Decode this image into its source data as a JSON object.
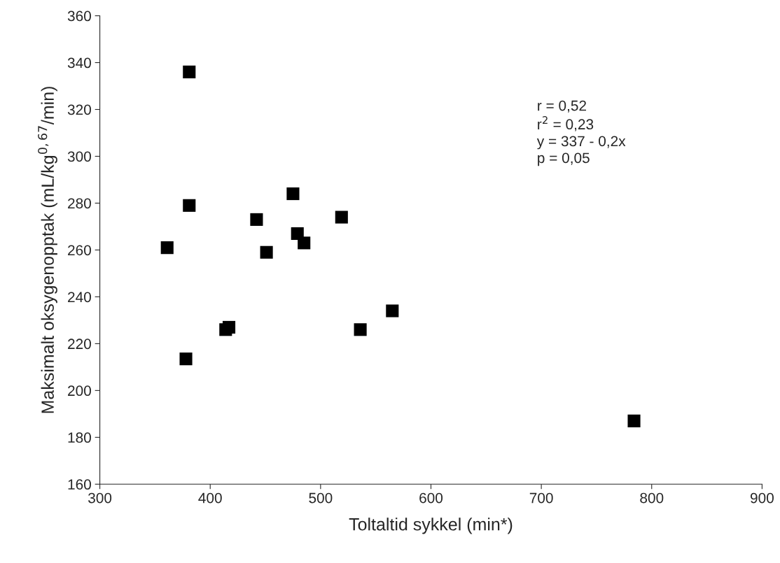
{
  "chart_data": {
    "type": "scatter",
    "xlabel": "Toltaltid sykkel (min*)",
    "ylabel": "Maksimalt oksygenopptak (mL/kg$^{0,67}$/min)",
    "x": [
      381,
      381,
      361,
      378,
      414,
      417,
      442,
      451,
      475,
      479,
      485,
      519,
      536,
      565,
      784
    ],
    "values": [
      336,
      279,
      261,
      213.5,
      226,
      227,
      273,
      259,
      284,
      267,
      263,
      274,
      226,
      234,
      187
    ],
    "color": "#000000",
    "marker": "square",
    "xlim": [
      300,
      900
    ],
    "xticks": [
      300,
      400,
      500,
      600,
      700,
      800,
      900
    ],
    "ylim": [
      160,
      360
    ],
    "yticks": [
      160,
      180,
      200,
      220,
      240,
      260,
      280,
      300,
      320,
      340,
      360
    ],
    "grid": false,
    "legend": false,
    "annotations": [
      "r = 0,52\nr$^{2}$ = 0,23\ny = 337 - 0,2x\np = 0,05"
    ]
  }
}
